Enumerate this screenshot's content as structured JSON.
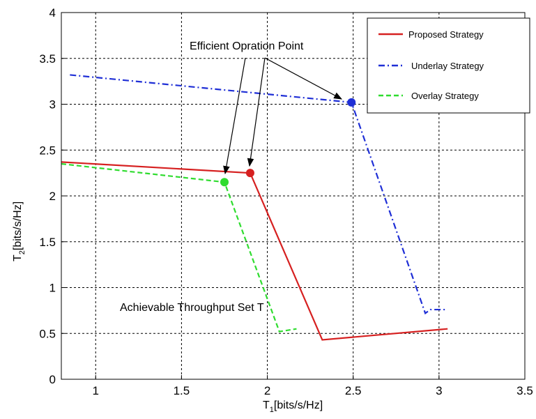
{
  "chart_data": {
    "type": "line",
    "xlim": [
      0.8,
      3.5
    ],
    "ylim": [
      0,
      4
    ],
    "x_ticks": [
      "1",
      "1.5",
      "2",
      "2.5",
      "3",
      "3.5"
    ],
    "y_ticks": [
      "0",
      "0.5",
      "1",
      "1.5",
      "2",
      "2.5",
      "3",
      "3.5",
      "4"
    ],
    "x_tick_values": [
      1,
      1.5,
      2,
      2.5,
      3,
      3.5
    ],
    "y_tick_values": [
      0,
      0.5,
      1,
      1.5,
      2,
      2.5,
      3,
      3.5,
      4
    ],
    "xlabel": {
      "base": "T",
      "sub": "1",
      "rest": "[bits/s/Hz]"
    },
    "ylabel": {
      "base": "T",
      "sub": "2",
      "rest": "[bits/s/Hz]"
    },
    "grid": true,
    "legend_position": "top-right",
    "series": [
      {
        "name": "Proposed Strategy",
        "color": "#d62020",
        "dash": "solid",
        "x": [
          0.8,
          1.9,
          2.32,
          3.05
        ],
        "y": [
          2.37,
          2.25,
          0.43,
          0.55
        ],
        "marker": {
          "x": 1.9,
          "y": 2.25
        }
      },
      {
        "name": "Underlay Strategy",
        "color": "#1f2fd6",
        "dash": "dashdot",
        "x": [
          0.85,
          2.49,
          2.92,
          2.95,
          3.05
        ],
        "y": [
          3.32,
          3.02,
          0.72,
          0.76,
          0.76
        ],
        "marker": {
          "x": 2.49,
          "y": 3.02
        }
      },
      {
        "name": "Overlay Strategy",
        "color": "#2fdc2f",
        "dash": "dashed",
        "x": [
          0.8,
          1.75,
          2.07,
          2.17
        ],
        "y": [
          2.35,
          2.15,
          0.52,
          0.55
        ],
        "marker": {
          "x": 1.75,
          "y": 2.15
        }
      }
    ],
    "annotations": [
      {
        "text": "Efficient Opration Point"
      },
      {
        "text": "Achievable Throughput Set T"
      }
    ]
  }
}
